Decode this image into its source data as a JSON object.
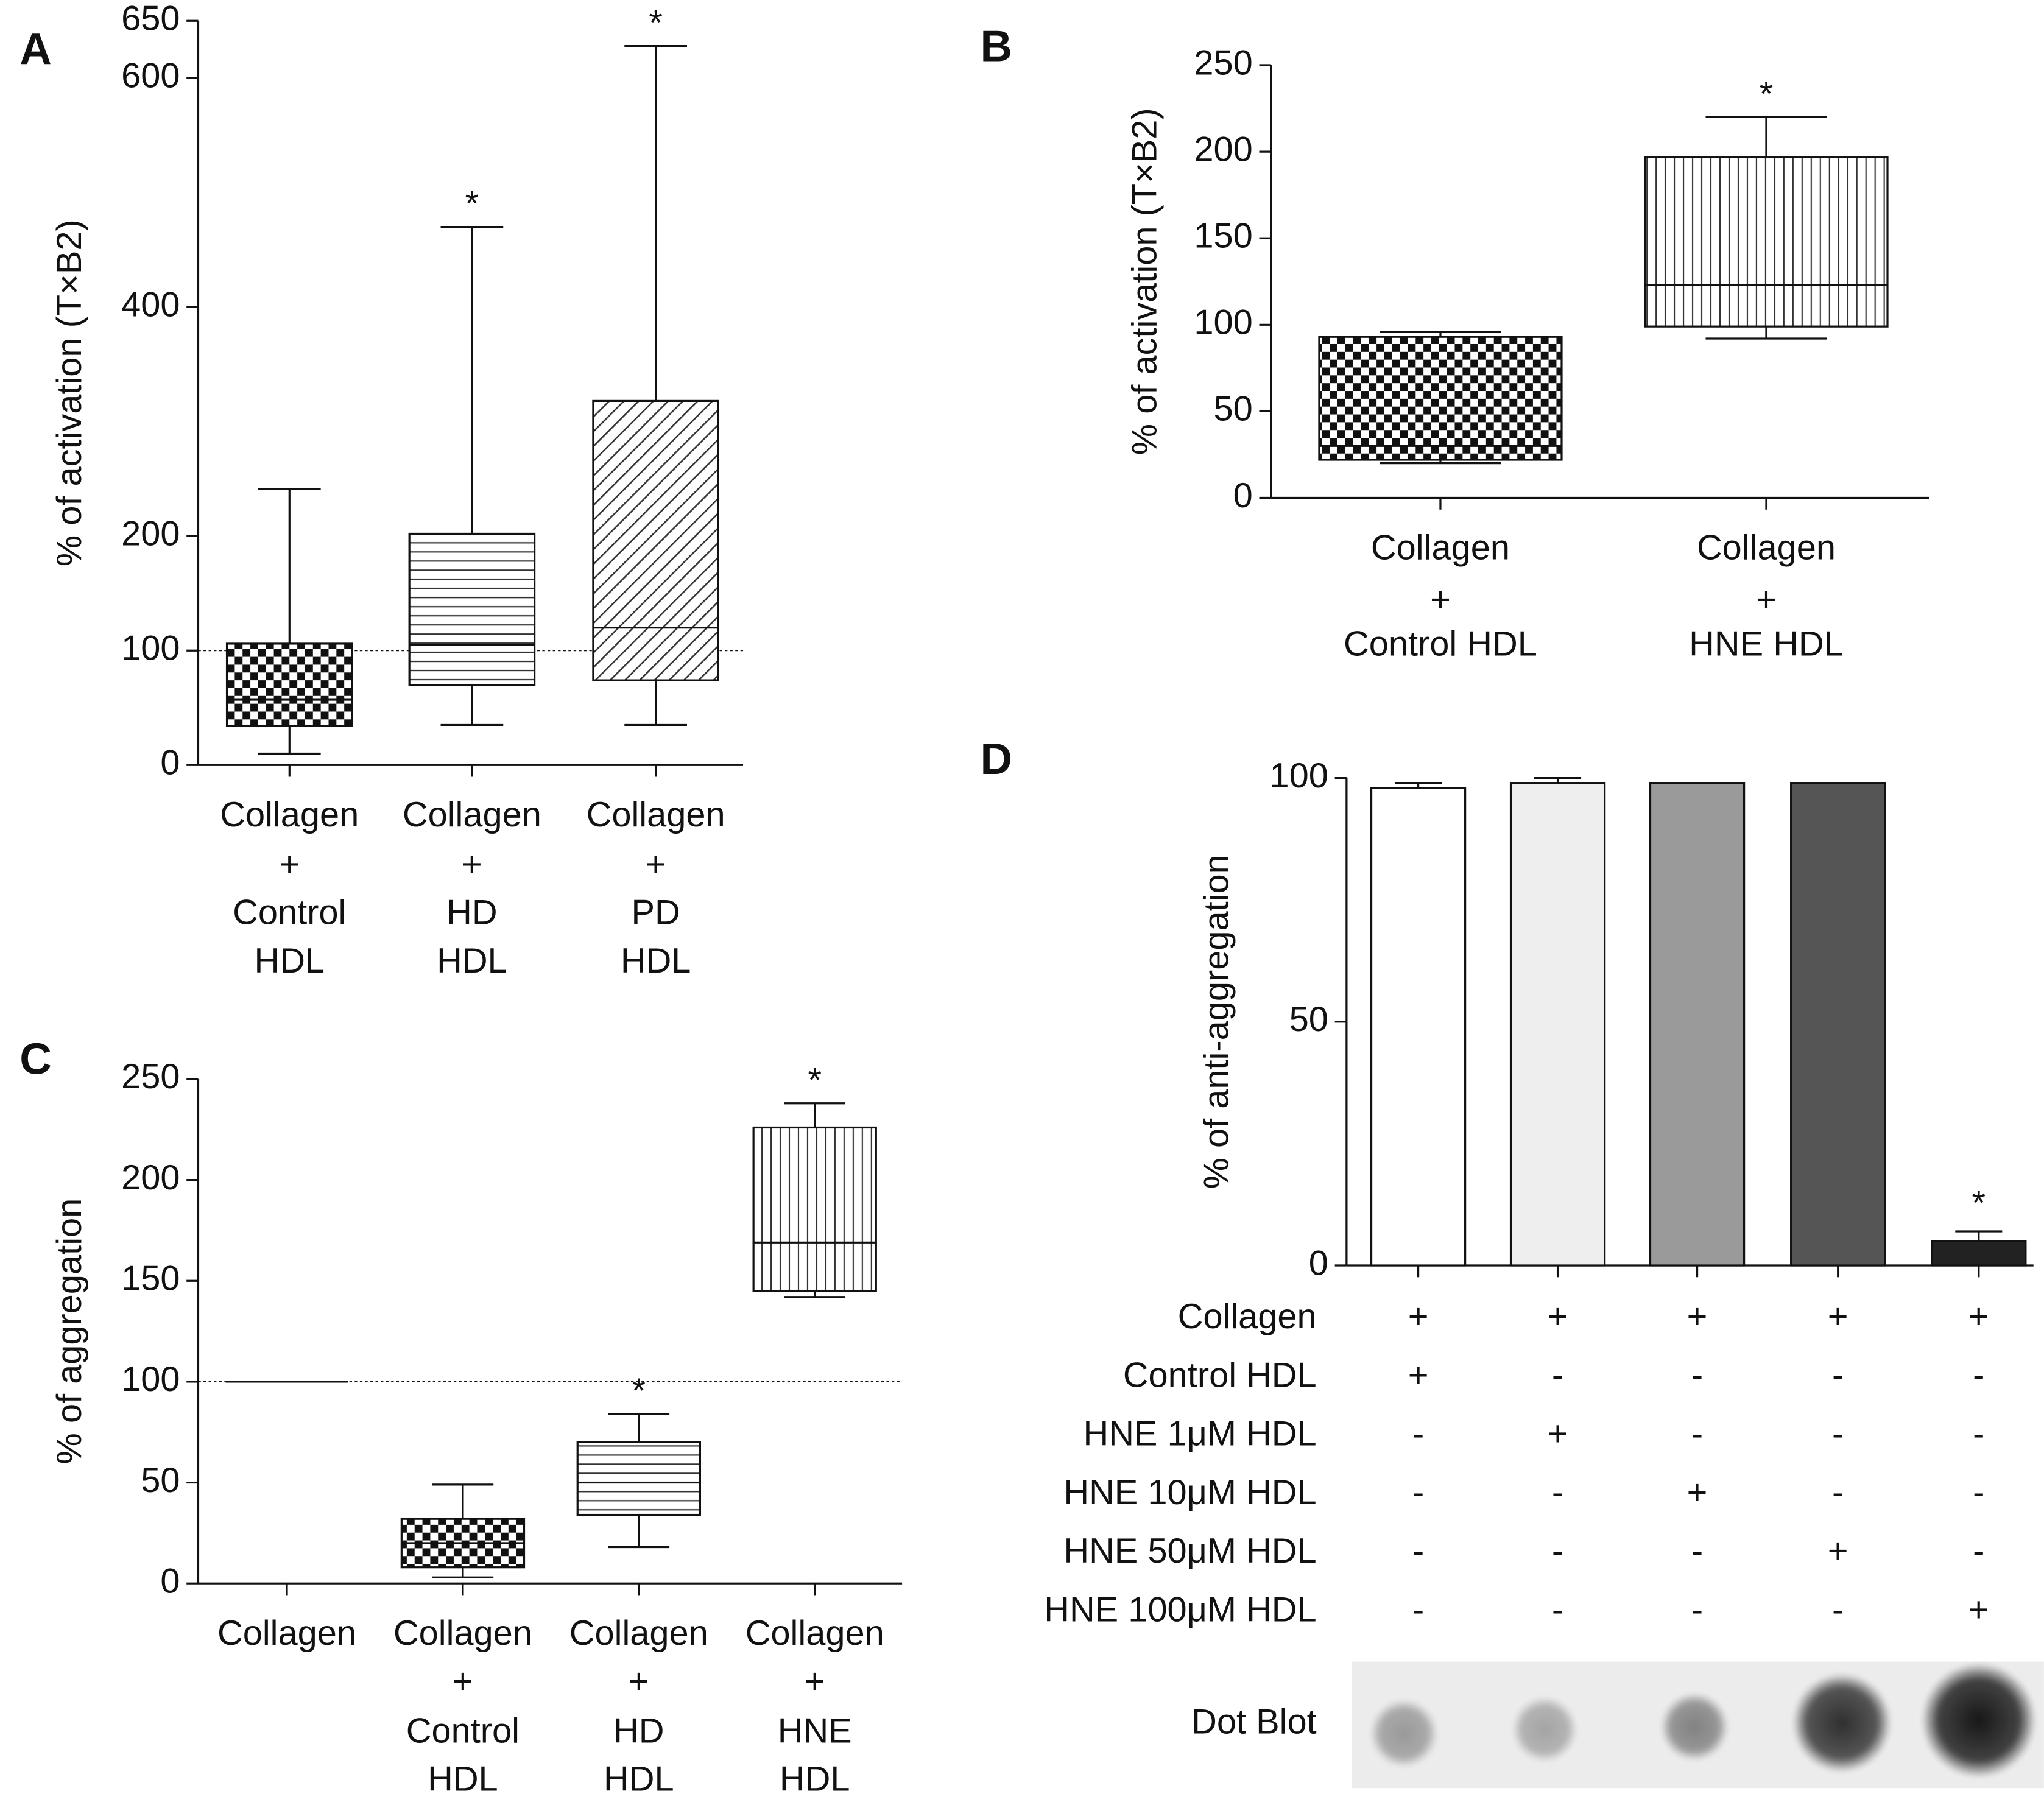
{
  "chart_data": [
    {
      "type": "box",
      "panel": "A",
      "y_label": "% of activation (T×B2)",
      "categories": [
        [
          "Collagen",
          "+",
          "Control",
          "HDL"
        ],
        [
          "Collagen",
          "+",
          "HD",
          "HDL"
        ],
        [
          "Collagen",
          "+",
          "PD",
          "HDL"
        ]
      ],
      "boxes": [
        {
          "min": 10,
          "q1": 34,
          "median": 57,
          "q3": 106,
          "max": 241
        },
        {
          "min": 35,
          "q1": 70,
          "median": 105,
          "q3": 202,
          "max": 470
        },
        {
          "min": 35,
          "q1": 74,
          "median": 120,
          "q3": 318,
          "max": 628
        }
      ],
      "patterns": [
        "checker",
        "horizontal",
        "diagonal"
      ],
      "annotations": [
        null,
        "*",
        "*"
      ],
      "reference_line": 100,
      "ylim": [
        0,
        650
      ],
      "yticks": [
        0,
        100,
        200,
        400,
        600,
        650
      ]
    },
    {
      "type": "box",
      "panel": "B",
      "y_label": "% of activation (T×B2)",
      "categories": [
        [
          "Collagen",
          "+",
          "Control HDL"
        ],
        [
          "Collagen",
          "+",
          "HNE HDL"
        ]
      ],
      "boxes": [
        {
          "min": 20,
          "q1": 22,
          "median": 30,
          "q3": 93,
          "max": 96
        },
        {
          "min": 92,
          "q1": 99,
          "median": 123,
          "q3": 197,
          "max": 220
        }
      ],
      "patterns": [
        "checker",
        "vertical"
      ],
      "annotations": [
        null,
        "*"
      ],
      "ylim": [
        0,
        250
      ],
      "yticks": [
        0,
        50,
        100,
        150,
        200,
        250
      ]
    },
    {
      "type": "box",
      "panel": "C",
      "y_label": "% of aggregation",
      "categories": [
        [
          "Collagen"
        ],
        [
          "Collagen",
          "+",
          "Control",
          "HDL"
        ],
        [
          "Collagen",
          "+",
          "HD",
          "HDL"
        ],
        [
          "Collagen",
          "+",
          "HNE",
          "HDL"
        ]
      ],
      "boxes": [
        {
          "min": 100,
          "q1": 100,
          "median": 100,
          "q3": 100,
          "max": 100
        },
        {
          "min": 3,
          "q1": 8,
          "median": 20,
          "q3": 32,
          "max": 49
        },
        {
          "min": 18,
          "q1": 34,
          "median": 50,
          "q3": 70,
          "max": 84
        },
        {
          "min": 142,
          "q1": 145,
          "median": 169,
          "q3": 226,
          "max": 238
        }
      ],
      "patterns": [
        "none",
        "checker",
        "horizontal",
        "vertical"
      ],
      "annotations": [
        null,
        null,
        "*",
        "*"
      ],
      "reference_line": 100,
      "ylim": [
        0,
        250
      ],
      "yticks": [
        0,
        50,
        100,
        150,
        200,
        250
      ]
    },
    {
      "type": "bar",
      "panel": "D",
      "y_label": "% of anti-aggregation",
      "values": [
        98,
        99,
        99,
        99,
        5
      ],
      "errors": [
        1,
        1,
        null,
        null,
        2
      ],
      "colors": [
        "#ffffff",
        "#eeeeee",
        "#9a9a9a",
        "#555555",
        "#222222"
      ],
      "annotations": [
        null,
        null,
        null,
        null,
        "*"
      ],
      "ylim": [
        0,
        100
      ],
      "yticks": [
        0,
        50,
        100
      ],
      "table": {
        "row_labels": [
          "Collagen",
          "Control HDL",
          "HNE 1μM HDL",
          "HNE 10μM HDL",
          "HNE 50μM HDL",
          "HNE 100μM HDL"
        ],
        "cells": [
          [
            "+",
            "+",
            "+",
            "+",
            "+"
          ],
          [
            "+",
            "-",
            "-",
            "-",
            "-"
          ],
          [
            "-",
            "+",
            "-",
            "-",
            "-"
          ],
          [
            "-",
            "-",
            "+",
            "-",
            "-"
          ],
          [
            "-",
            "-",
            "-",
            "+",
            "-"
          ],
          [
            "-",
            "-",
            "-",
            "-",
            "+"
          ]
        ]
      },
      "dot_blot_label": "Dot Blot"
    }
  ]
}
